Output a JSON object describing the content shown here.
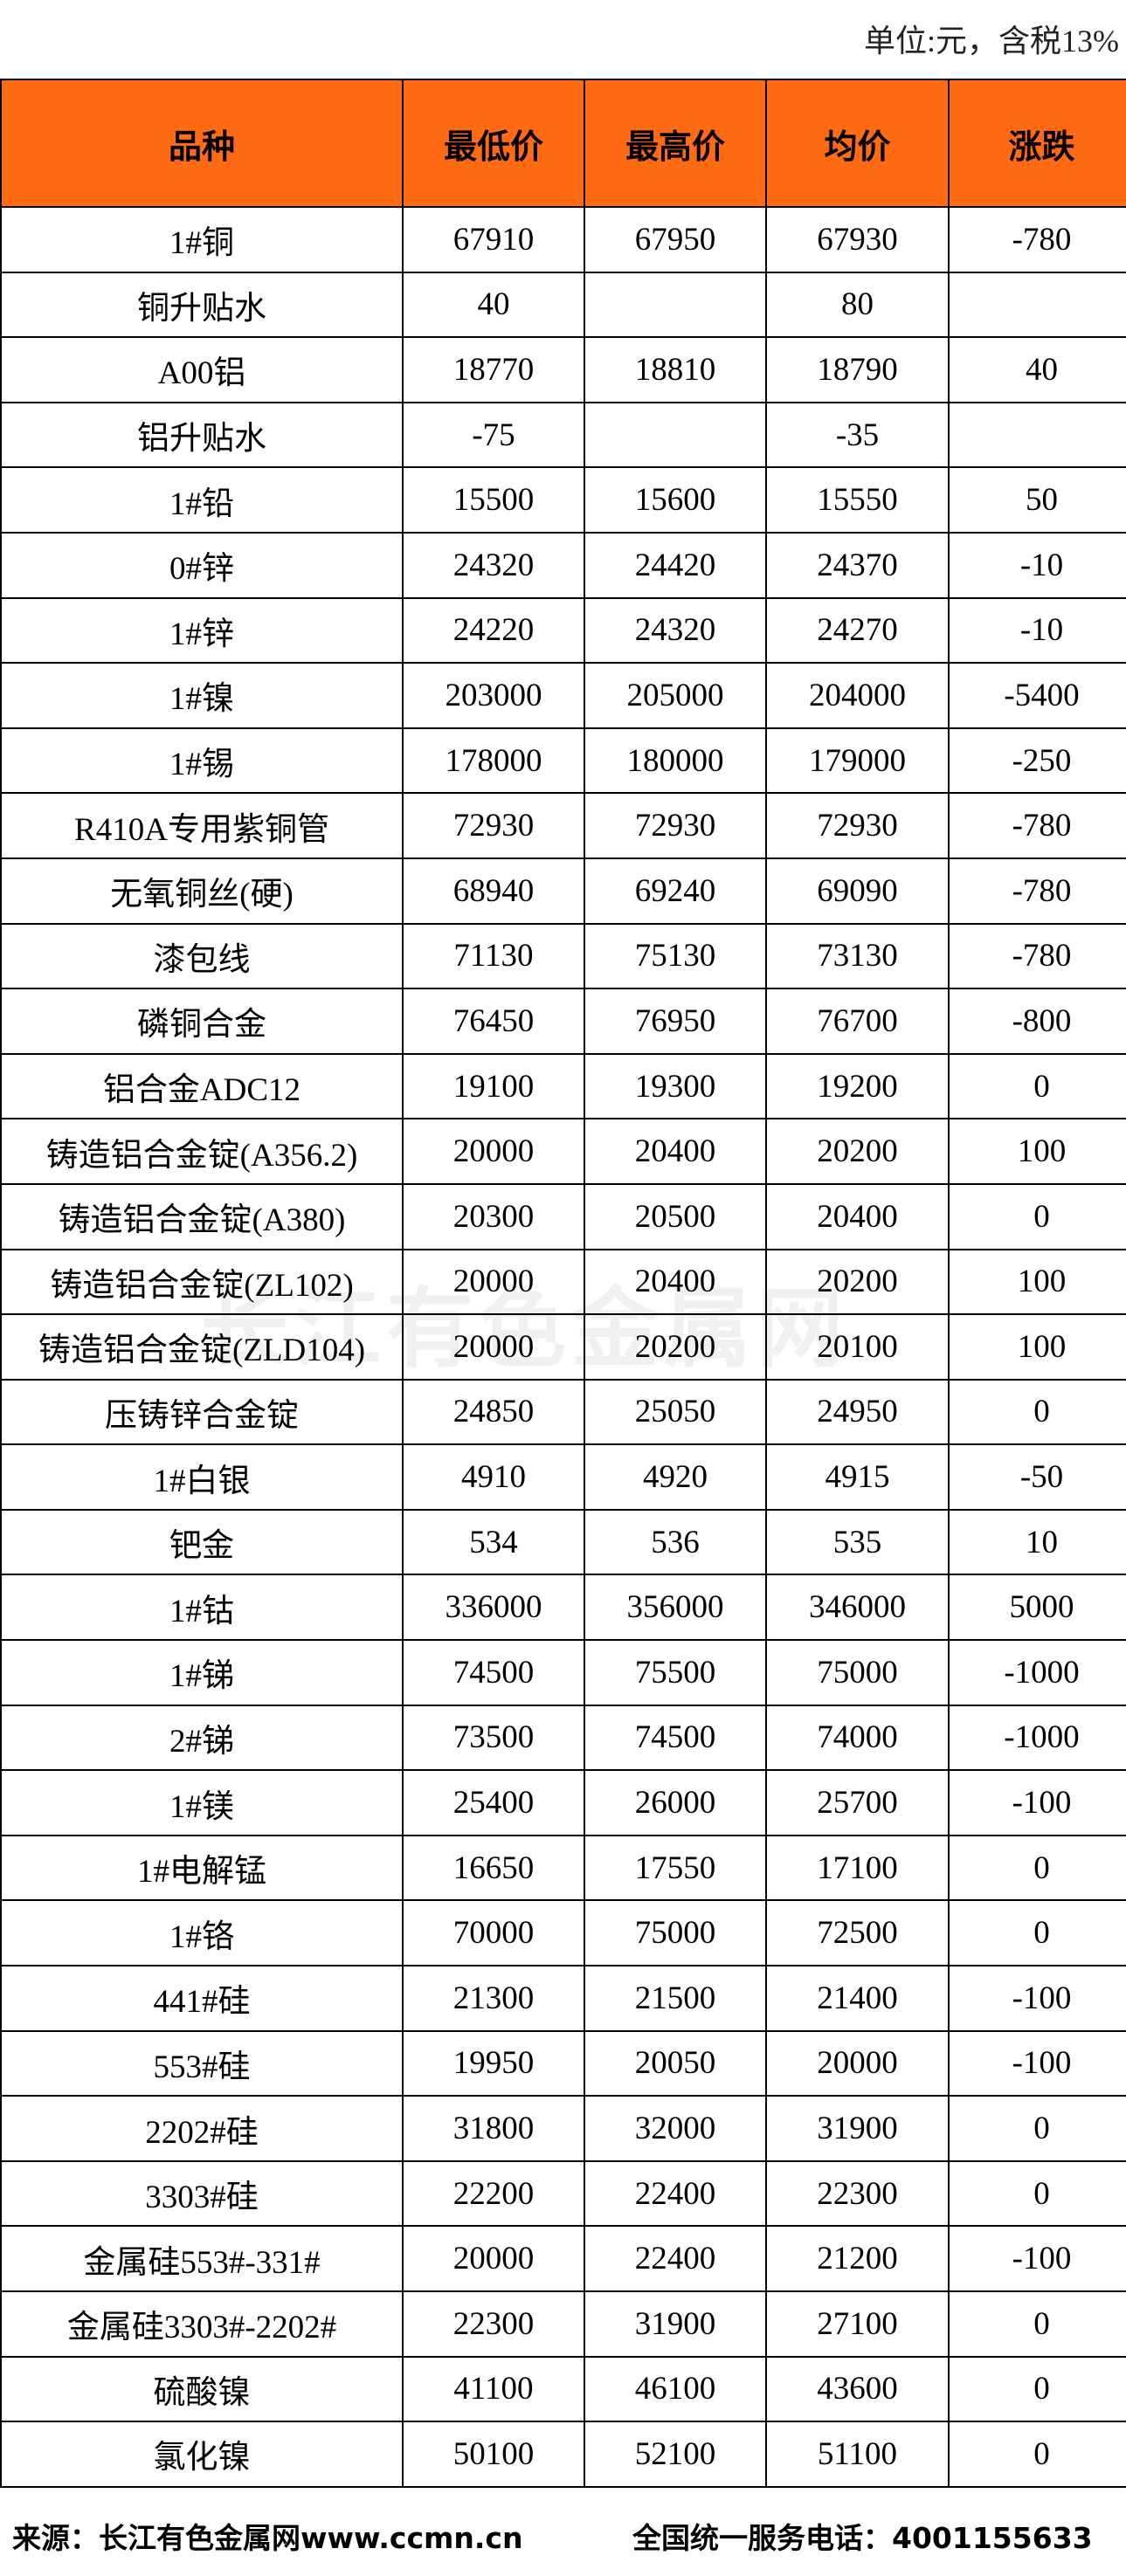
{
  "unit": "单位:元，含税13%",
  "table": {
    "header": [
      "品种",
      "最低价",
      "最高价",
      "均价",
      "涨跌"
    ],
    "rows": [
      [
        "1#铜",
        67910,
        67950,
        67930,
        -780
      ],
      [
        "铜升贴水",
        40,
        null,
        80,
        null
      ],
      [
        "A00铝",
        18770,
        18810,
        18790,
        40
      ],
      [
        "铝升贴水",
        -75,
        null,
        -35,
        null
      ],
      [
        "1#铅",
        15500,
        15600,
        15550,
        50
      ],
      [
        "0#锌",
        24320,
        24420,
        24370,
        -10
      ],
      [
        "1#锌",
        24220,
        24320,
        24270,
        -10
      ],
      [
        "1#镍",
        203000,
        205000,
        204000,
        -5400
      ],
      [
        "1#锡",
        178000,
        180000,
        179000,
        -250
      ],
      [
        "R410A专用紫铜管",
        72930,
        72930,
        72930,
        -780
      ],
      [
        "无氧铜丝(硬)",
        68940,
        69240,
        69090,
        -780
      ],
      [
        "漆包线",
        71130,
        75130,
        73130,
        -780
      ],
      [
        "磷铜合金",
        76450,
        76950,
        76700,
        -800
      ],
      [
        "铝合金ADC12",
        19100,
        19300,
        19200,
        0
      ],
      [
        "铸造铝合金锭(A356.2)",
        20000,
        20400,
        20200,
        100
      ],
      [
        "铸造铝合金锭(A380)",
        20300,
        20500,
        20400,
        0
      ],
      [
        "铸造铝合金锭(ZL102)",
        20000,
        20400,
        20200,
        100
      ],
      [
        "铸造铝合金锭(ZLD104)",
        20000,
        20200,
        20100,
        100
      ],
      [
        "压铸锌合金锭",
        24850,
        25050,
        24950,
        0
      ],
      [
        "1#白银",
        4910,
        4920,
        4915,
        -50
      ],
      [
        "钯金",
        534,
        536,
        535,
        10
      ],
      [
        "1#钴",
        336000,
        356000,
        346000,
        5000
      ],
      [
        "1#锑",
        74500,
        75500,
        75000,
        -1000
      ],
      [
        "2#锑",
        73500,
        74500,
        74000,
        -1000
      ],
      [
        "1#镁",
        25400,
        26000,
        25700,
        -100
      ],
      [
        "1#电解锰",
        16650,
        17550,
        17100,
        0
      ],
      [
        "1#铬",
        70000,
        75000,
        72500,
        0
      ],
      [
        "441#硅",
        21300,
        21500,
        21400,
        -100
      ],
      [
        "553#硅",
        19950,
        20050,
        20000,
        -100
      ],
      [
        "2202#硅",
        31800,
        32000,
        31900,
        0
      ],
      [
        "3303#硅",
        22200,
        22400,
        22300,
        0
      ],
      [
        "金属硅553#-331#",
        20000,
        22400,
        21200,
        -100
      ],
      [
        "金属硅3303#-2202#",
        22300,
        31900,
        27100,
        0
      ],
      [
        "硫酸镍",
        41100,
        46100,
        43600,
        0
      ],
      [
        "氯化镍",
        50100,
        52100,
        51100,
        0
      ]
    ]
  },
  "watermark": "长江有色金属网",
  "footer": {
    "source": "来源：长江有色金属网www.ccmn.cn",
    "phone": "全国统一服务电话：4001155633"
  }
}
